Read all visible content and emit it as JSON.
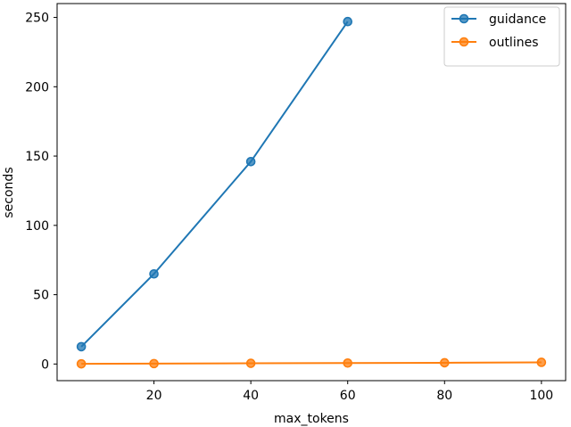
{
  "chart_data": {
    "type": "line",
    "xlabel": "max_tokens",
    "ylabel": "seconds",
    "xlim": [
      0,
      105
    ],
    "ylim": [
      -12,
      260
    ],
    "x_ticks": [
      20,
      40,
      60,
      80,
      100
    ],
    "y_ticks": [
      0,
      50,
      100,
      150,
      200,
      250
    ],
    "grid": false,
    "legend": "top-right",
    "series": [
      {
        "name": "guidance",
        "color": "#1f77b4",
        "x": [
          5,
          20,
          40,
          60
        ],
        "y": [
          12.5,
          65,
          146,
          247
        ]
      },
      {
        "name": "outlines",
        "color": "#ff7f0e",
        "x": [
          5,
          20,
          40,
          60,
          80,
          100
        ],
        "y": [
          0.1,
          0.3,
          0.5,
          0.7,
          0.9,
          1.2
        ]
      }
    ]
  }
}
